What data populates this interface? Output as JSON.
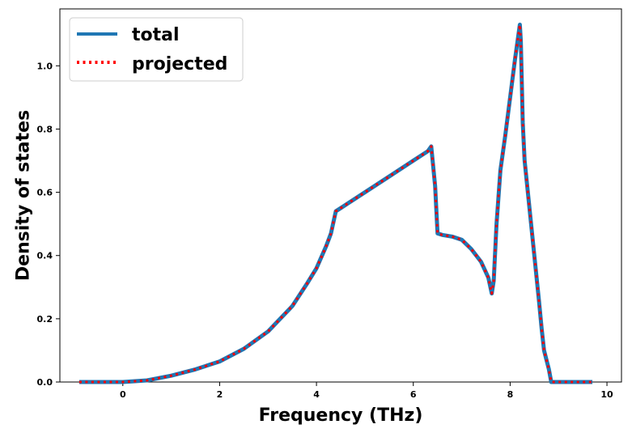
{
  "chart_data": {
    "type": "line",
    "title": "",
    "xlabel": "Frequency (THz)",
    "ylabel": "Density of states",
    "xlim": [
      -1.3,
      10.3
    ],
    "ylim": [
      0.0,
      1.18
    ],
    "xticks": [
      0,
      2,
      4,
      6,
      8,
      10
    ],
    "yticks": [
      0.0,
      0.2,
      0.4,
      0.6,
      0.8,
      1.0
    ],
    "xtick_labels": [
      "0",
      "2",
      "4",
      "6",
      "8",
      "10"
    ],
    "ytick_labels": [
      "0.0",
      "0.2",
      "0.4",
      "0.6",
      "0.8",
      "1.0"
    ],
    "grid": false,
    "legend_position": "top-left",
    "series": [
      {
        "name": "total",
        "color": "#1f77b4",
        "style": "solid",
        "x": [
          -0.9,
          0.0,
          0.5,
          1.0,
          1.5,
          2.0,
          2.5,
          3.0,
          3.5,
          3.8,
          4.0,
          4.2,
          4.3,
          4.4,
          4.5,
          5.0,
          5.5,
          6.0,
          6.3,
          6.37,
          6.45,
          6.5,
          6.6,
          6.8,
          7.0,
          7.2,
          7.4,
          7.55,
          7.62,
          7.66,
          7.72,
          7.8,
          7.9,
          8.0,
          8.1,
          8.2,
          8.22,
          8.26,
          8.3,
          8.4,
          8.5,
          8.6,
          8.65,
          8.7,
          8.8,
          8.85,
          9.0,
          9.3,
          9.7
        ],
        "y": [
          0.0,
          0.0,
          0.005,
          0.02,
          0.04,
          0.065,
          0.105,
          0.16,
          0.24,
          0.31,
          0.36,
          0.43,
          0.47,
          0.54,
          0.55,
          0.6,
          0.65,
          0.7,
          0.73,
          0.745,
          0.62,
          0.47,
          0.465,
          0.46,
          0.45,
          0.42,
          0.38,
          0.33,
          0.28,
          0.32,
          0.5,
          0.67,
          0.78,
          0.9,
          1.02,
          1.13,
          1.08,
          0.82,
          0.7,
          0.55,
          0.4,
          0.25,
          0.17,
          0.1,
          0.04,
          0.0,
          0.0,
          0.0,
          0.0
        ]
      },
      {
        "name": "projected",
        "color": "#ff0000",
        "style": "dotted",
        "x": [
          -0.9,
          0.0,
          0.5,
          1.0,
          1.5,
          2.0,
          2.5,
          3.0,
          3.5,
          3.8,
          4.0,
          4.2,
          4.3,
          4.4,
          4.5,
          5.0,
          5.5,
          6.0,
          6.3,
          6.37,
          6.45,
          6.5,
          6.6,
          6.8,
          7.0,
          7.2,
          7.4,
          7.55,
          7.62,
          7.66,
          7.72,
          7.8,
          7.9,
          8.0,
          8.1,
          8.2,
          8.22,
          8.26,
          8.3,
          8.4,
          8.5,
          8.6,
          8.65,
          8.7,
          8.8,
          8.85,
          9.0,
          9.3,
          9.7
        ],
        "y": [
          0.0,
          0.0,
          0.005,
          0.02,
          0.04,
          0.065,
          0.105,
          0.16,
          0.24,
          0.31,
          0.36,
          0.43,
          0.47,
          0.54,
          0.55,
          0.6,
          0.65,
          0.7,
          0.73,
          0.745,
          0.62,
          0.47,
          0.465,
          0.46,
          0.45,
          0.42,
          0.38,
          0.33,
          0.28,
          0.32,
          0.5,
          0.67,
          0.78,
          0.9,
          1.02,
          1.13,
          1.08,
          0.82,
          0.7,
          0.55,
          0.4,
          0.25,
          0.17,
          0.1,
          0.04,
          0.0,
          0.0,
          0.0,
          0.0
        ]
      }
    ]
  }
}
